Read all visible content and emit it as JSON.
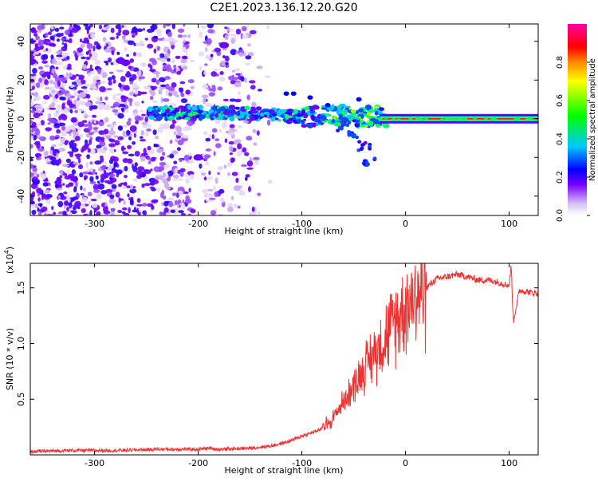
{
  "title": "C2E1.2023.136.12.20.G20",
  "chart_data": [
    {
      "type": "heatmap",
      "xlabel": "Height of straight line (km)",
      "ylabel": "Frequency (Hz)",
      "xlim": [
        -362,
        128
      ],
      "ylim": [
        -50,
        49
      ],
      "xticks": [
        -300,
        -200,
        -100,
        0,
        100
      ],
      "yticks": [
        -40,
        -20,
        0,
        20,
        40
      ],
      "grid": false,
      "colorbar": {
        "label": "Normalized spectral amplitude",
        "range": [
          0,
          1
        ],
        "ticks": [
          0.0,
          0.2,
          0.4,
          0.6,
          0.8
        ],
        "colormap": [
          "#ffffff",
          "#d9c2f5",
          "#7a00ff",
          "#0000ff",
          "#00c8ff",
          "#00ff00",
          "#ffff00",
          "#ff8800",
          "#ff0000",
          "#ff00a0"
        ]
      },
      "ridge": [
        {
          "x": -250,
          "y": 3
        },
        {
          "x": -200,
          "y": 3
        },
        {
          "x": -150,
          "y": 3
        },
        {
          "x": -120,
          "y": 2
        },
        {
          "x": -100,
          "y": 1
        },
        {
          "x": -80,
          "y": 2
        },
        {
          "x": -60,
          "y": 2
        },
        {
          "x": -40,
          "y": 1
        },
        {
          "x": -20,
          "y": 1
        },
        {
          "x": 0,
          "y": 0
        },
        {
          "x": 50,
          "y": 0
        },
        {
          "x": 100,
          "y": 0
        },
        {
          "x": 128,
          "y": 0
        }
      ],
      "branch": [
        {
          "x": -60,
          "y": -4
        },
        {
          "x": -50,
          "y": -8
        },
        {
          "x": -40,
          "y": -14
        },
        {
          "x": -35,
          "y": -22
        }
      ]
    },
    {
      "type": "line",
      "xlabel": "Height of straight line (km)",
      "ylabel": "SNR (10 * v/v)",
      "scale_label": "(x10^4)",
      "xlim": [
        -362,
        128
      ],
      "ylim": [
        0,
        1.72
      ],
      "xticks": [
        -300,
        -200,
        -100,
        0,
        100
      ],
      "yticks": [
        0.5,
        1.0,
        1.5
      ],
      "grid": false,
      "color": "#ee3333",
      "series": [
        {
          "x": [
            -362,
            -320,
            -280,
            -240,
            -200,
            -190,
            -180,
            -150,
            -130,
            -120,
            -110,
            -100,
            -90,
            -80,
            -70,
            -60,
            -50,
            -40,
            -30,
            -20,
            -10,
            0,
            10,
            20,
            30,
            40,
            50,
            60,
            70,
            80,
            90,
            100,
            102,
            104,
            110,
            120,
            128
          ],
          "y": [
            0.03,
            0.04,
            0.04,
            0.05,
            0.05,
            0.06,
            0.05,
            0.06,
            0.08,
            0.1,
            0.13,
            0.17,
            0.2,
            0.24,
            0.33,
            0.48,
            0.62,
            0.78,
            0.92,
            1.05,
            1.2,
            1.35,
            1.45,
            1.5,
            1.58,
            1.6,
            1.62,
            1.6,
            1.57,
            1.57,
            1.55,
            1.52,
            1.7,
            1.2,
            1.48,
            1.46,
            1.45
          ]
        }
      ]
    }
  ]
}
